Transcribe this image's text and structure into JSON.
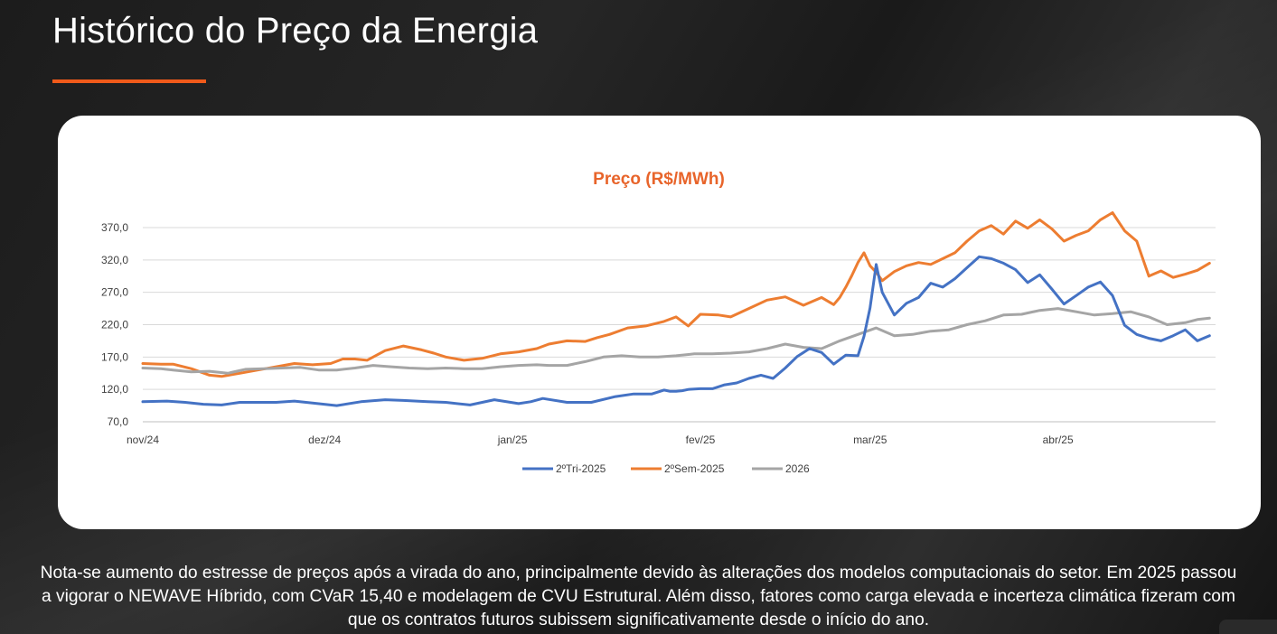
{
  "page": {
    "title": "Histórico do Preço da Energia",
    "accent_color": "#f05a1a",
    "note": "Nota-se aumento do estresse de preços após a virada do ano, principalmente devido às alterações dos modelos computacionais do setor. Em 2025 passou a vigorar o NEWAVE Híbrido, com CVaR 15,40 e modelagem de CVU Estrutural. Além disso, fatores como carga elevada e incerteza climática fizeram com que os contratos futuros subissem significativamente desde o início do ano."
  },
  "chart_data": {
    "type": "line",
    "title": "Preço (R$/MWh)",
    "title_color": "#e8642a",
    "xlabel": "",
    "ylabel": "",
    "ylim": [
      70,
      370
    ],
    "yticks": [
      70,
      120,
      170,
      220,
      270,
      320,
      370
    ],
    "ytick_labels": [
      "70,0",
      "120,0",
      "170,0",
      "220,0",
      "270,0",
      "320,0",
      "370,0"
    ],
    "x_tick_labels": [
      "nov/24",
      "dez/24",
      "jan/25",
      "fev/25",
      "mar/25",
      "abr/25"
    ],
    "x_tick_positions": [
      0,
      30,
      61,
      92,
      120,
      151
    ],
    "x_range": [
      0,
      177
    ],
    "grid": true,
    "legend_position": "bottom-center",
    "series": [
      {
        "name": "2ºTri-2025",
        "color": "#4472c4",
        "x": [
          0,
          4,
          7,
          10,
          13,
          16,
          19,
          22,
          25,
          28,
          32,
          36,
          40,
          43,
          47,
          50,
          54,
          58,
          62,
          64,
          66,
          70,
          74,
          78,
          81,
          84,
          86,
          87,
          88,
          89,
          90,
          92,
          94,
          96,
          98,
          100,
          102,
          104,
          106,
          108,
          110,
          112,
          114,
          116,
          118,
          119,
          120,
          121,
          122,
          124,
          126,
          128,
          130,
          132,
          134,
          136,
          138,
          140,
          142,
          144,
          146,
          148,
          150,
          152,
          154,
          156,
          158,
          160,
          162,
          164,
          166,
          168,
          170,
          172,
          174,
          176
        ],
        "values": [
          101,
          102,
          100,
          97,
          96,
          100,
          100,
          100,
          102,
          99,
          95,
          101,
          104,
          103,
          101,
          100,
          96,
          104,
          98,
          101,
          106,
          100,
          100,
          109,
          113,
          113,
          119,
          117,
          117,
          118,
          120,
          121,
          121,
          127,
          130,
          137,
          142,
          137,
          153,
          171,
          183,
          177,
          159,
          173,
          172,
          202,
          246,
          313,
          270,
          235,
          253,
          262,
          284,
          278,
          291,
          308,
          325,
          322,
          315,
          305,
          285,
          297,
          275,
          252,
          265,
          278,
          286,
          265,
          219,
          205,
          199,
          195,
          203,
          212,
          195,
          203
        ]
      },
      {
        "name": "2ºSem-2025",
        "color": "#ed7d31",
        "x": [
          0,
          3,
          5,
          8,
          11,
          13,
          16,
          19,
          22,
          25,
          28,
          31,
          33,
          35,
          37,
          40,
          43,
          46,
          48,
          50,
          53,
          56,
          59,
          62,
          65,
          67,
          70,
          73,
          75,
          77,
          80,
          83,
          86,
          88,
          90,
          92,
          95,
          97,
          100,
          103,
          106,
          109,
          112,
          114,
          115,
          116,
          117,
          118,
          119,
          120,
          121,
          122,
          124,
          126,
          128,
          130,
          132,
          134,
          136,
          138,
          140,
          142,
          144,
          146,
          148,
          150,
          152,
          154,
          156,
          158,
          160,
          162,
          164,
          166,
          168,
          170,
          172,
          174,
          176
        ],
        "values": [
          160,
          159,
          159,
          152,
          142,
          140,
          145,
          150,
          155,
          160,
          158,
          160,
          167,
          167,
          165,
          180,
          187,
          181,
          176,
          170,
          165,
          168,
          175,
          178,
          183,
          190,
          195,
          194,
          200,
          205,
          215,
          218,
          225,
          232,
          218,
          236,
          235,
          232,
          245,
          258,
          263,
          250,
          262,
          251,
          262,
          278,
          296,
          316,
          331,
          311,
          301,
          288,
          302,
          311,
          316,
          313,
          322,
          331,
          349,
          365,
          373,
          360,
          380,
          369,
          382,
          368,
          349,
          358,
          365,
          382,
          393,
          365,
          349,
          295,
          303,
          293,
          298,
          304,
          315
        ]
      },
      {
        "name": "2026",
        "color": "#a5a5a5",
        "x": [
          0,
          3,
          5,
          8,
          11,
          14,
          17,
          20,
          23,
          26,
          29,
          32,
          35,
          38,
          41,
          44,
          47,
          50,
          53,
          56,
          59,
          62,
          65,
          67,
          70,
          73,
          76,
          79,
          82,
          85,
          88,
          91,
          94,
          97,
          100,
          103,
          106,
          109,
          112,
          115,
          118,
          121,
          124,
          127,
          130,
          133,
          136,
          139,
          142,
          145,
          148,
          151,
          154,
          157,
          160,
          163,
          166,
          169,
          172,
          174,
          176
        ],
        "values": [
          153,
          152,
          150,
          147,
          148,
          145,
          151,
          152,
          153,
          154,
          150,
          150,
          153,
          157,
          155,
          153,
          152,
          153,
          152,
          152,
          155,
          157,
          158,
          157,
          157,
          163,
          170,
          172,
          170,
          170,
          172,
          175,
          175,
          176,
          178,
          183,
          190,
          185,
          183,
          195,
          205,
          215,
          203,
          205,
          210,
          212,
          220,
          226,
          235,
          236,
          242,
          245,
          240,
          235,
          237,
          240,
          232,
          220,
          223,
          228,
          230
        ]
      }
    ]
  }
}
